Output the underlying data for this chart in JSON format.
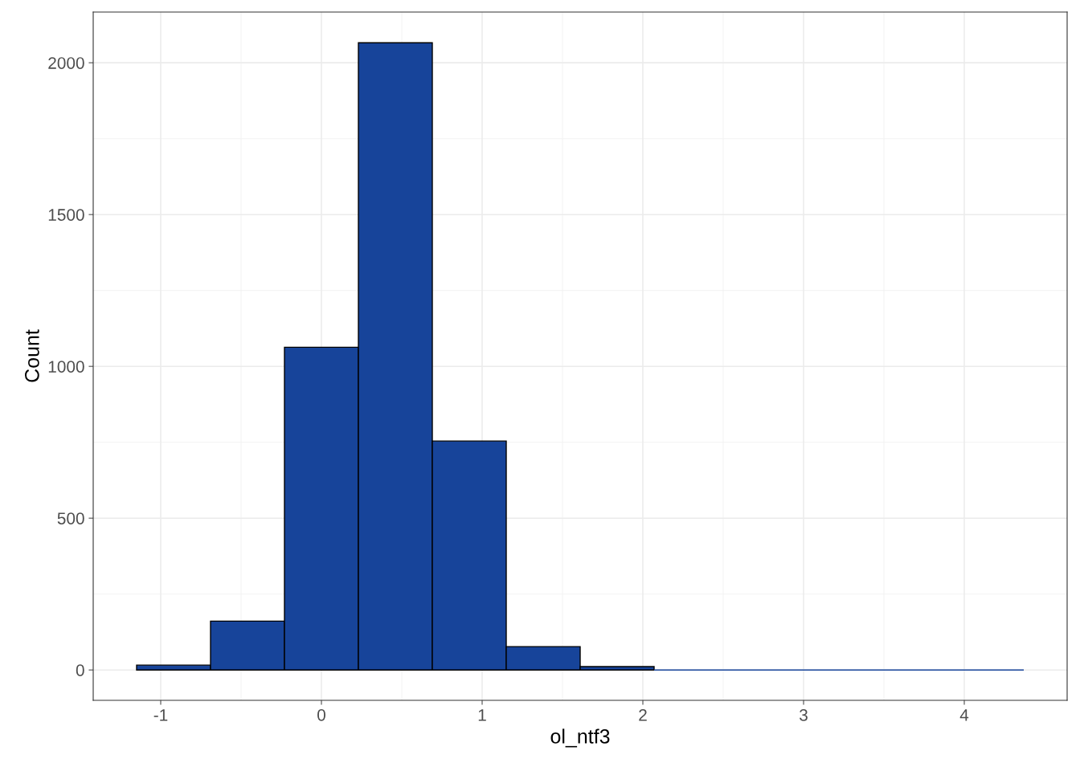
{
  "chart_data": {
    "type": "histogram",
    "xlabel": "ol_ntf3",
    "ylabel": "Count",
    "bins": [
      -1.15,
      -0.69,
      -0.23,
      0.23,
      0.69,
      1.15,
      1.61,
      2.07,
      2.53,
      2.99,
      3.45,
      3.91,
      4.37
    ],
    "values": [
      16,
      161,
      1063,
      2066,
      754,
      77,
      11,
      0,
      0,
      0,
      0,
      0
    ],
    "color": "#17449a",
    "xlim": [
      -1.42,
      4.64
    ],
    "ylim": [
      -100,
      2167
    ],
    "xticks": [
      {
        "value": -1,
        "label": "-1"
      },
      0,
      1,
      2,
      3,
      4
    ],
    "yticks": [
      0,
      500,
      1000,
      1500,
      2000
    ],
    "grid": true
  }
}
